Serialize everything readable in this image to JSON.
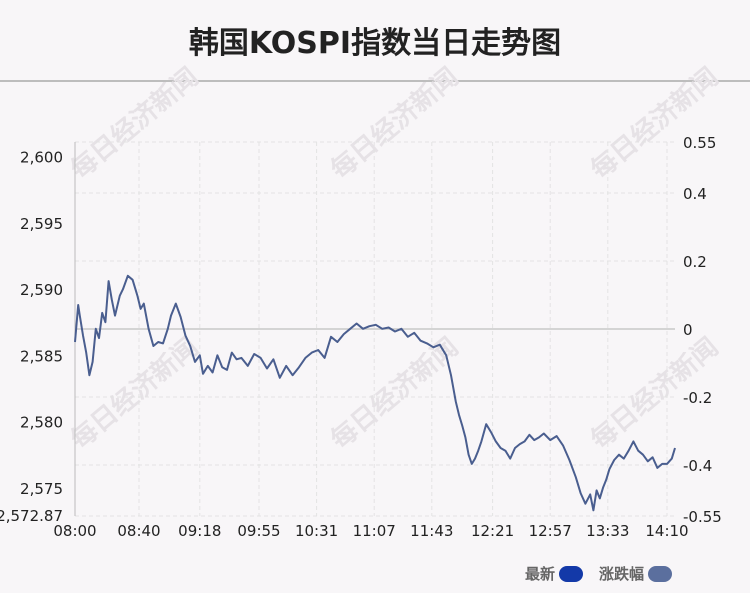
{
  "title": "韩国KOSPI指数当日走势图",
  "legend": {
    "items": [
      {
        "label": "最新",
        "color": "#1339a8"
      },
      {
        "label": "涨跌幅",
        "color": "#5b6f9e"
      }
    ]
  },
  "watermark": "每日经济新闻",
  "colors": {
    "line": "#4a5e8f",
    "zero_line": "#c8c8c8",
    "grid": "#e3e3e3",
    "axis_text": "#222222"
  },
  "chart_data": {
    "type": "line",
    "title": "韩国KOSPI指数当日走势图",
    "x_ticks": [
      "08:00",
      "08:40",
      "09:18",
      "09:55",
      "10:31",
      "11:07",
      "11:43",
      "12:21",
      "12:57",
      "13:33",
      "14:10"
    ],
    "y_left": {
      "ticks": [
        2600,
        2595,
        2590,
        2585,
        2580,
        2575
      ],
      "tick_labels": [
        "2,600",
        "2,595",
        "2,590",
        "2,585",
        "2,580",
        "2,575"
      ],
      "min": 2572.87,
      "min_label": "2,572.87",
      "max": 2601.1
    },
    "y_right": {
      "ticks": [
        0.55,
        0.4,
        0.2,
        0,
        -0.2,
        -0.4,
        -0.55
      ],
      "tick_labels": [
        "0.55",
        "0.4",
        "0.2",
        "0",
        "-0.2",
        "-0.4",
        "-0.55"
      ],
      "min": -0.55,
      "max": 0.55,
      "zero_value": 2587.1
    },
    "series": [
      {
        "x": [
          "08:00",
          "08:02",
          "08:03",
          "08:05",
          "08:07",
          "08:09",
          "08:11",
          "08:13",
          "08:15",
          "08:17",
          "08:19",
          "08:21",
          "08:23",
          "08:25",
          "08:28",
          "08:30",
          "08:33",
          "08:36",
          "08:39",
          "08:41",
          "08:43",
          "08:46",
          "08:49",
          "08:52",
          "08:55",
          "08:58",
          "09:00",
          "09:03",
          "09:06",
          "09:09",
          "09:12",
          "09:15",
          "09:18",
          "09:20",
          "09:23",
          "09:26",
          "09:29",
          "09:32",
          "09:35",
          "09:38",
          "09:41",
          "09:44",
          "09:48",
          "09:52",
          "09:56",
          "10:00",
          "10:04",
          "10:08",
          "10:12",
          "10:16",
          "10:20",
          "10:24",
          "10:28",
          "10:32",
          "10:36",
          "10:40",
          "10:44",
          "10:48",
          "10:52",
          "10:56",
          "11:00",
          "11:04",
          "11:08",
          "11:12",
          "11:16",
          "11:20",
          "11:24",
          "11:28",
          "11:32",
          "11:36",
          "11:40",
          "11:44",
          "11:48",
          "11:52",
          "11:55",
          "11:58",
          "12:00",
          "12:02",
          "12:04",
          "12:06",
          "12:08",
          "12:10",
          "12:12",
          "12:14",
          "12:17",
          "12:20",
          "12:23",
          "12:26",
          "12:29",
          "12:32",
          "12:35",
          "12:38",
          "12:41",
          "12:44",
          "12:47",
          "12:50",
          "12:53",
          "12:57",
          "13:01",
          "13:05",
          "13:09",
          "13:13",
          "13:16",
          "13:19",
          "13:22",
          "13:24",
          "13:26",
          "13:28",
          "13:30",
          "13:32",
          "13:34",
          "13:37",
          "13:40",
          "13:43",
          "13:46",
          "13:49",
          "13:52",
          "13:55",
          "13:58",
          "14:01",
          "14:04",
          "14:07",
          "14:10",
          "14:13",
          "14:15"
        ],
        "values": [
          2586.0,
          2588.8,
          2588.0,
          2586.5,
          2585.2,
          2583.5,
          2584.5,
          2587.0,
          2586.3,
          2588.2,
          2587.5,
          2590.6,
          2589.2,
          2588.0,
          2589.5,
          2590.0,
          2591.0,
          2590.7,
          2589.5,
          2588.5,
          2588.9,
          2587.0,
          2585.7,
          2586.0,
          2585.9,
          2587.0,
          2588.0,
          2588.9,
          2587.9,
          2586.5,
          2585.7,
          2584.5,
          2585.0,
          2583.6,
          2584.2,
          2583.7,
          2585.0,
          2584.1,
          2583.9,
          2585.2,
          2584.7,
          2584.8,
          2584.2,
          2585.1,
          2584.8,
          2584.0,
          2584.7,
          2583.3,
          2584.2,
          2583.5,
          2584.1,
          2584.8,
          2585.2,
          2585.4,
          2584.8,
          2586.4,
          2586.0,
          2586.6,
          2587.0,
          2587.4,
          2587.0,
          2587.2,
          2587.3,
          2587.0,
          2587.1,
          2586.8,
          2587.0,
          2586.4,
          2586.7,
          2586.1,
          2585.9,
          2585.6,
          2585.8,
          2585.0,
          2583.5,
          2581.5,
          2580.5,
          2579.7,
          2578.8,
          2577.5,
          2576.8,
          2577.2,
          2577.8,
          2578.5,
          2579.8,
          2579.2,
          2578.5,
          2578.0,
          2577.8,
          2577.2,
          2578.0,
          2578.3,
          2578.5,
          2579.0,
          2578.6,
          2578.8,
          2579.1,
          2578.6,
          2578.9,
          2578.2,
          2577.1,
          2575.8,
          2574.6,
          2573.8,
          2574.5,
          2573.3,
          2574.8,
          2574.2,
          2575.0,
          2575.6,
          2576.4,
          2577.1,
          2577.5,
          2577.2,
          2577.8,
          2578.5,
          2577.8,
          2577.5,
          2577.0,
          2577.3,
          2576.5,
          2576.8,
          2576.8,
          2577.2,
          2578.0
        ]
      }
    ]
  }
}
